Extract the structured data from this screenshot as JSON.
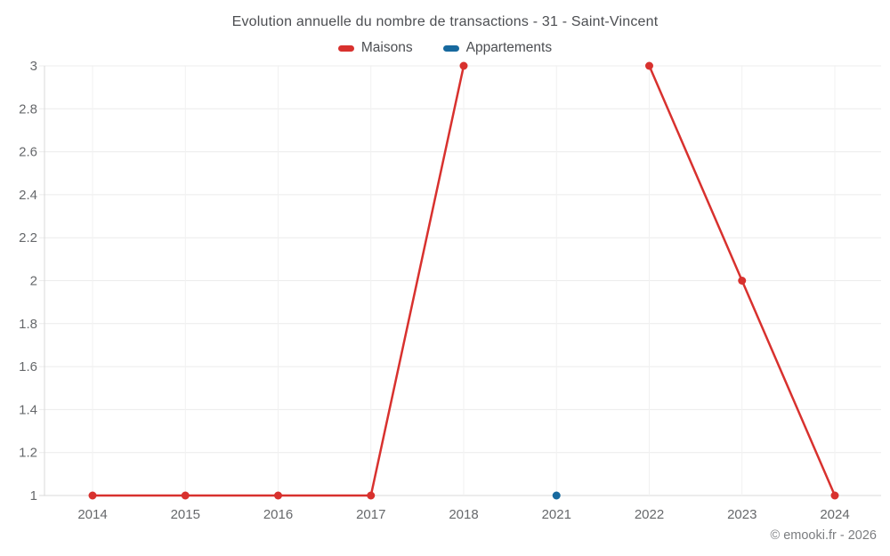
{
  "header": {
    "title": "Evolution annuelle du nombre de transactions - 31 - Saint-Vincent"
  },
  "legend": {
    "items": [
      {
        "label": "Maisons",
        "color": "#D8312E"
      },
      {
        "label": "Appartements",
        "color": "#17699E"
      }
    ]
  },
  "footer": {
    "credit": "© emooki.fr - 2026"
  },
  "chart_data": {
    "type": "line",
    "title": "Evolution annuelle du nombre de transactions - 31 - Saint-Vincent",
    "categories": [
      "2014",
      "2015",
      "2016",
      "2017",
      "2018",
      "2021",
      "2022",
      "2023",
      "2024"
    ],
    "series": [
      {
        "name": "Maisons",
        "color": "#D8312E",
        "values": [
          1,
          1,
          1,
          1,
          3,
          null,
          3,
          2,
          1
        ]
      },
      {
        "name": "Appartements",
        "color": "#17699E",
        "values": [
          null,
          null,
          null,
          null,
          null,
          1,
          null,
          null,
          null
        ]
      }
    ],
    "xlabel": "",
    "ylabel": "",
    "ylim": [
      1,
      3
    ],
    "yticks": [
      1,
      1.2,
      1.4,
      1.6,
      1.8,
      2,
      2.2,
      2.4,
      2.6,
      2.8,
      3
    ],
    "ytick_labels": [
      "1",
      "1.2",
      "1.4",
      "1.6",
      "1.8",
      "2",
      "2.2",
      "2.4",
      "2.6",
      "2.8",
      "3"
    ],
    "grid": true,
    "legend_position": "top",
    "line_gap_note": "no segment drawn across missing year between 2018 and 2022"
  }
}
